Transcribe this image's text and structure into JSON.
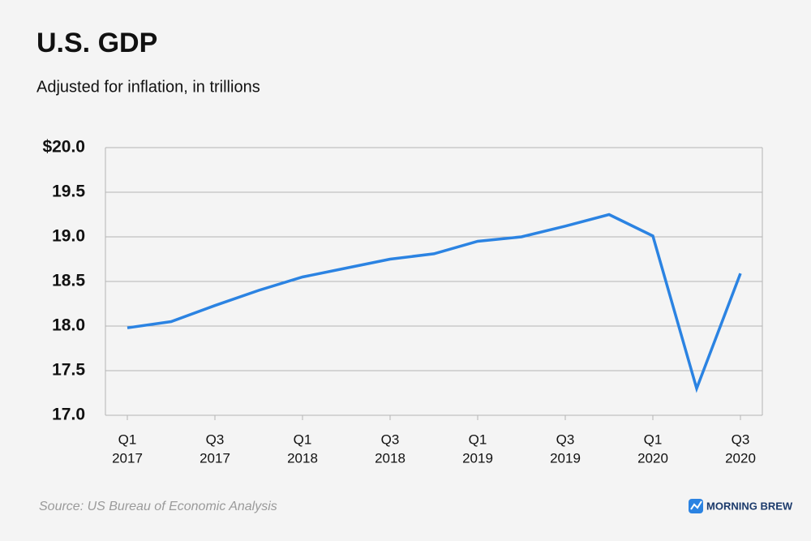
{
  "chart_data": {
    "type": "line",
    "title": "U.S. GDP",
    "subtitle": "Adjusted for inflation, in trillions",
    "categories": [
      [
        "Q1",
        "2017"
      ],
      null,
      [
        "Q3",
        "2017"
      ],
      null,
      [
        "Q1",
        "2018"
      ],
      null,
      [
        "Q3",
        "2018"
      ],
      null,
      [
        "Q1",
        "2019"
      ],
      null,
      [
        "Q3",
        "2019"
      ],
      null,
      [
        "Q1",
        "2020"
      ],
      null,
      [
        "Q3",
        "2020"
      ]
    ],
    "values": [
      17.98,
      18.05,
      18.23,
      18.4,
      18.55,
      18.65,
      18.75,
      18.81,
      18.95,
      19.0,
      19.12,
      19.25,
      19.01,
      17.3,
      18.59
    ],
    "color": "#2b83e2",
    "ylim": [
      17,
      20
    ],
    "yticks": [
      {
        "value": 17,
        "label": "17.0"
      },
      17.5,
      {
        "value": 18,
        "label": "18.0"
      },
      18.5,
      {
        "value": 19,
        "label": "19.0"
      },
      19.5,
      {
        "value": 20,
        "label": "$20.0"
      }
    ],
    "grid": true,
    "source": "Source: US Bureau of Economic Analysis",
    "brand": "MORNING BREW"
  }
}
